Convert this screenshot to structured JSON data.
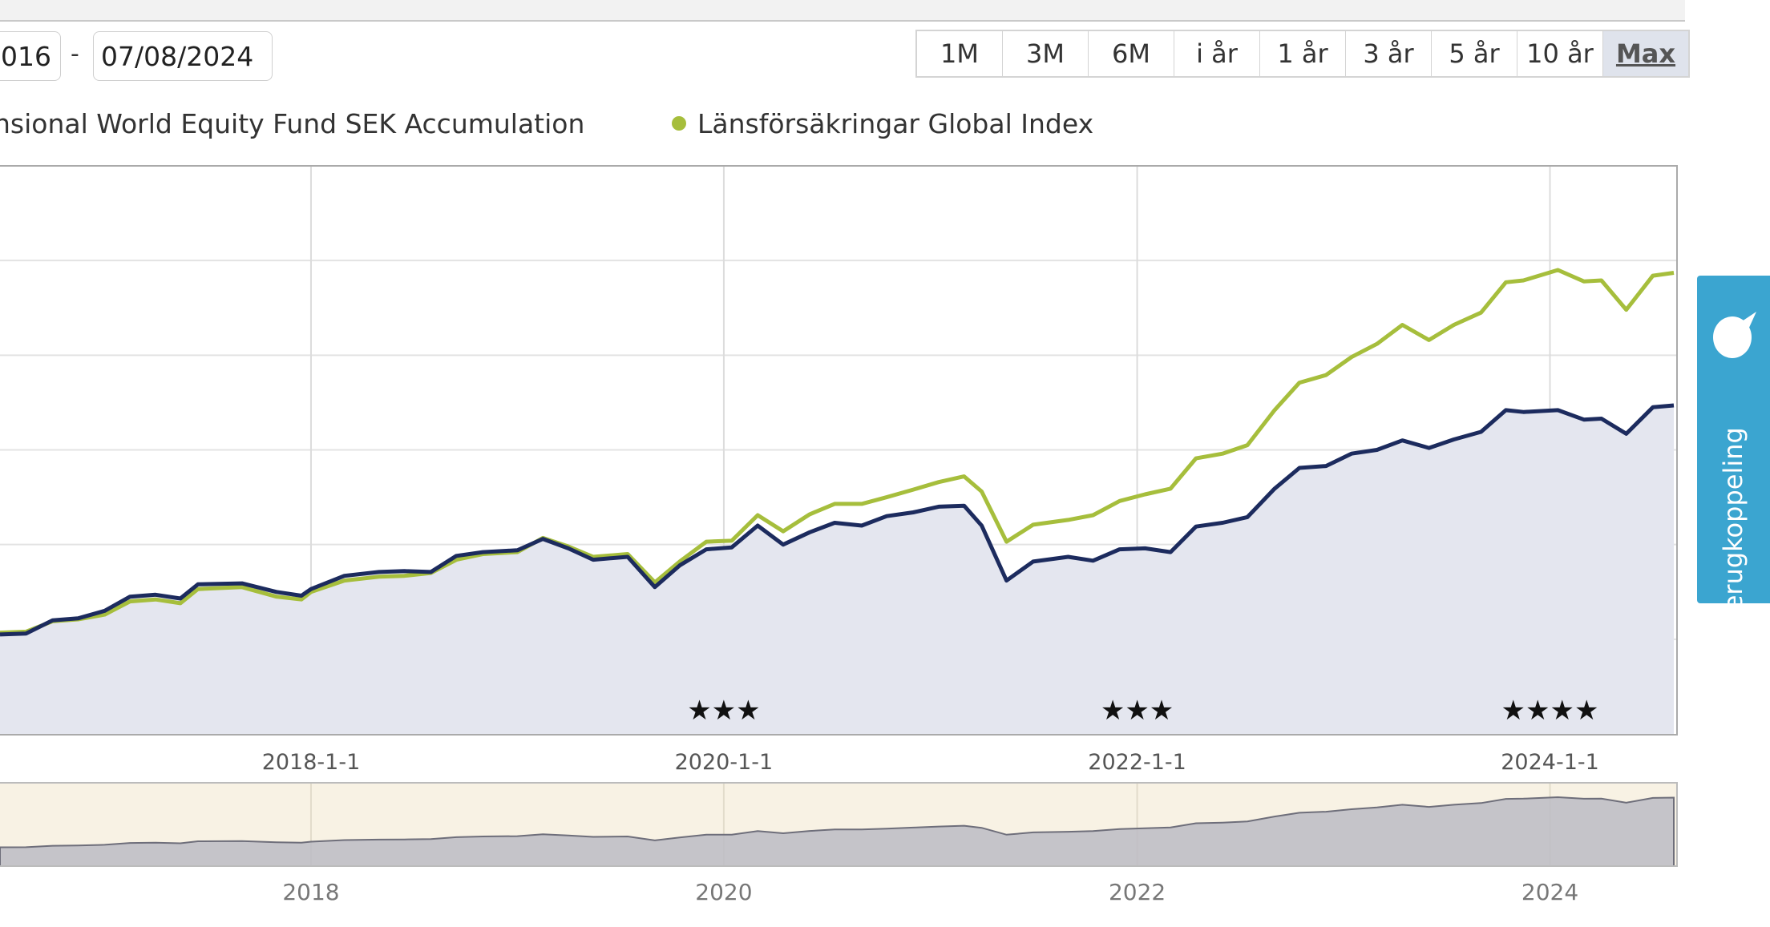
{
  "date_range": {
    "from": "016",
    "separator": "-",
    "to": "07/08/2024"
  },
  "range_buttons": [
    "1M",
    "3M",
    "6M",
    "i år",
    "1 år",
    "3 år",
    "5 år",
    "10 år",
    "Max"
  ],
  "active_range": "Max",
  "legend": [
    {
      "label": "nsional World Equity Fund SEK Accumulation",
      "color": "#1c2b5e"
    },
    {
      "label": "Länsförsäkringar Global Index",
      "color": "#a6be3c"
    }
  ],
  "feedback_tab": {
    "label": "terugkoppeling",
    "icon": "speech-bubble-icon"
  },
  "chart_data": {
    "type": "area",
    "x_tick_labels": [
      "2018-1-1",
      "2020-1-1",
      "2022-1-1",
      "2024-1-1"
    ],
    "navigator_tick_labels": [
      "2018",
      "2020",
      "2022",
      "2024"
    ],
    "x_range": [
      "2016-06-30",
      "2024-08-07"
    ],
    "y_range": [
      0,
      6
    ],
    "y_gridlines": [
      1,
      2,
      3,
      4,
      5
    ],
    "grid": true,
    "rating_markers": [
      {
        "date": "2020-01-01",
        "stars": 3,
        "label": "★★★"
      },
      {
        "date": "2022-01-01",
        "stars": 3,
        "label": "★★★"
      },
      {
        "date": "2024-01-01",
        "stars": 4,
        "label": "★★★★"
      }
    ],
    "series": [
      {
        "name": "nsional World Equity Fund SEK Accumulation",
        "color": "#1c2b5e",
        "fill": "#e4e6ef",
        "points": [
          [
            "2016-06-30",
            1.05
          ],
          [
            "2016-08-15",
            1.06
          ],
          [
            "2016-10-01",
            1.2
          ],
          [
            "2016-11-15",
            1.22
          ],
          [
            "2017-01-01",
            1.3
          ],
          [
            "2017-02-15",
            1.45
          ],
          [
            "2017-04-01",
            1.47
          ],
          [
            "2017-05-15",
            1.43
          ],
          [
            "2017-06-15",
            1.58
          ],
          [
            "2017-09-01",
            1.59
          ],
          [
            "2017-11-01",
            1.5
          ],
          [
            "2017-12-15",
            1.46
          ],
          [
            "2018-01-01",
            1.53
          ],
          [
            "2018-03-01",
            1.67
          ],
          [
            "2018-05-01",
            1.71
          ],
          [
            "2018-06-15",
            1.72
          ],
          [
            "2018-08-01",
            1.71
          ],
          [
            "2018-09-15",
            1.88
          ],
          [
            "2018-11-01",
            1.92
          ],
          [
            "2019-01-01",
            1.94
          ],
          [
            "2019-02-15",
            2.06
          ],
          [
            "2019-04-01",
            1.96
          ],
          [
            "2019-05-15",
            1.84
          ],
          [
            "2019-07-15",
            1.87
          ],
          [
            "2019-09-01",
            1.55
          ],
          [
            "2019-10-15",
            1.78
          ],
          [
            "2019-12-01",
            1.95
          ],
          [
            "2020-01-15",
            1.97
          ],
          [
            "2020-03-01",
            2.2
          ],
          [
            "2020-04-15",
            2.0
          ],
          [
            "2020-06-01",
            2.13
          ],
          [
            "2020-07-15",
            2.23
          ],
          [
            "2020-09-01",
            2.2
          ],
          [
            "2020-10-15",
            2.3
          ],
          [
            "2020-12-01",
            2.34
          ],
          [
            "2021-01-15",
            2.4
          ],
          [
            "2021-03-01",
            2.41
          ],
          [
            "2021-04-01",
            2.2
          ],
          [
            "2021-05-15",
            1.62
          ],
          [
            "2021-07-01",
            1.82
          ],
          [
            "2021-09-01",
            1.87
          ],
          [
            "2021-10-15",
            1.83
          ],
          [
            "2021-12-01",
            1.95
          ],
          [
            "2022-01-15",
            1.96
          ],
          [
            "2022-03-01",
            1.92
          ],
          [
            "2022-04-15",
            2.19
          ],
          [
            "2022-06-01",
            2.23
          ],
          [
            "2022-07-15",
            2.29
          ],
          [
            "2022-09-01",
            2.59
          ],
          [
            "2022-10-15",
            2.81
          ],
          [
            "2022-12-01",
            2.83
          ],
          [
            "2023-01-15",
            2.96
          ],
          [
            "2023-03-01",
            3.0
          ],
          [
            "2023-04-15",
            3.1
          ],
          [
            "2023-06-01",
            3.02
          ],
          [
            "2023-07-15",
            3.11
          ],
          [
            "2023-09-01",
            3.19
          ],
          [
            "2023-10-15",
            3.42
          ],
          [
            "2023-11-15",
            3.4
          ],
          [
            "2024-01-15",
            3.42
          ],
          [
            "2024-03-01",
            3.32
          ],
          [
            "2024-04-01",
            3.33
          ],
          [
            "2024-05-15",
            3.17
          ],
          [
            "2024-07-01",
            3.45
          ],
          [
            "2024-08-07",
            3.47
          ]
        ]
      },
      {
        "name": "Länsförsäkringar Global Index",
        "color": "#a6be3c",
        "points": [
          [
            "2016-06-30",
            1.07
          ],
          [
            "2016-08-15",
            1.08
          ],
          [
            "2016-10-01",
            1.19
          ],
          [
            "2016-11-15",
            1.21
          ],
          [
            "2017-01-01",
            1.26
          ],
          [
            "2017-02-15",
            1.4
          ],
          [
            "2017-04-01",
            1.42
          ],
          [
            "2017-05-15",
            1.38
          ],
          [
            "2017-06-15",
            1.53
          ],
          [
            "2017-09-01",
            1.55
          ],
          [
            "2017-11-01",
            1.45
          ],
          [
            "2017-12-15",
            1.42
          ],
          [
            "2018-01-01",
            1.5
          ],
          [
            "2018-03-01",
            1.62
          ],
          [
            "2018-05-01",
            1.66
          ],
          [
            "2018-06-15",
            1.67
          ],
          [
            "2018-08-01",
            1.7
          ],
          [
            "2018-09-15",
            1.84
          ],
          [
            "2018-11-01",
            1.9
          ],
          [
            "2019-01-01",
            1.92
          ],
          [
            "2019-02-15",
            2.07
          ],
          [
            "2019-04-01",
            1.98
          ],
          [
            "2019-05-15",
            1.87
          ],
          [
            "2019-07-15",
            1.9
          ],
          [
            "2019-09-01",
            1.6
          ],
          [
            "2019-10-15",
            1.82
          ],
          [
            "2019-12-01",
            2.03
          ],
          [
            "2020-01-15",
            2.04
          ],
          [
            "2020-03-01",
            2.31
          ],
          [
            "2020-04-15",
            2.14
          ],
          [
            "2020-06-01",
            2.32
          ],
          [
            "2020-07-15",
            2.43
          ],
          [
            "2020-09-01",
            2.43
          ],
          [
            "2020-10-15",
            2.5
          ],
          [
            "2020-12-01",
            2.58
          ],
          [
            "2021-01-15",
            2.66
          ],
          [
            "2021-03-01",
            2.72
          ],
          [
            "2021-04-01",
            2.56
          ],
          [
            "2021-05-15",
            2.03
          ],
          [
            "2021-07-01",
            2.21
          ],
          [
            "2021-09-01",
            2.26
          ],
          [
            "2021-10-15",
            2.31
          ],
          [
            "2021-12-01",
            2.46
          ],
          [
            "2022-01-15",
            2.53
          ],
          [
            "2022-03-01",
            2.59
          ],
          [
            "2022-04-15",
            2.91
          ],
          [
            "2022-06-01",
            2.96
          ],
          [
            "2022-07-15",
            3.05
          ],
          [
            "2022-09-01",
            3.42
          ],
          [
            "2022-10-15",
            3.71
          ],
          [
            "2022-12-01",
            3.79
          ],
          [
            "2023-01-15",
            3.98
          ],
          [
            "2023-03-01",
            4.12
          ],
          [
            "2023-04-15",
            4.32
          ],
          [
            "2023-06-01",
            4.16
          ],
          [
            "2023-07-15",
            4.32
          ],
          [
            "2023-09-01",
            4.45
          ],
          [
            "2023-10-15",
            4.77
          ],
          [
            "2023-11-15",
            4.79
          ],
          [
            "2024-01-15",
            4.9
          ],
          [
            "2024-03-01",
            4.78
          ],
          [
            "2024-04-01",
            4.79
          ],
          [
            "2024-05-15",
            4.48
          ],
          [
            "2024-07-01",
            4.84
          ],
          [
            "2024-08-07",
            4.87
          ]
        ]
      }
    ]
  }
}
